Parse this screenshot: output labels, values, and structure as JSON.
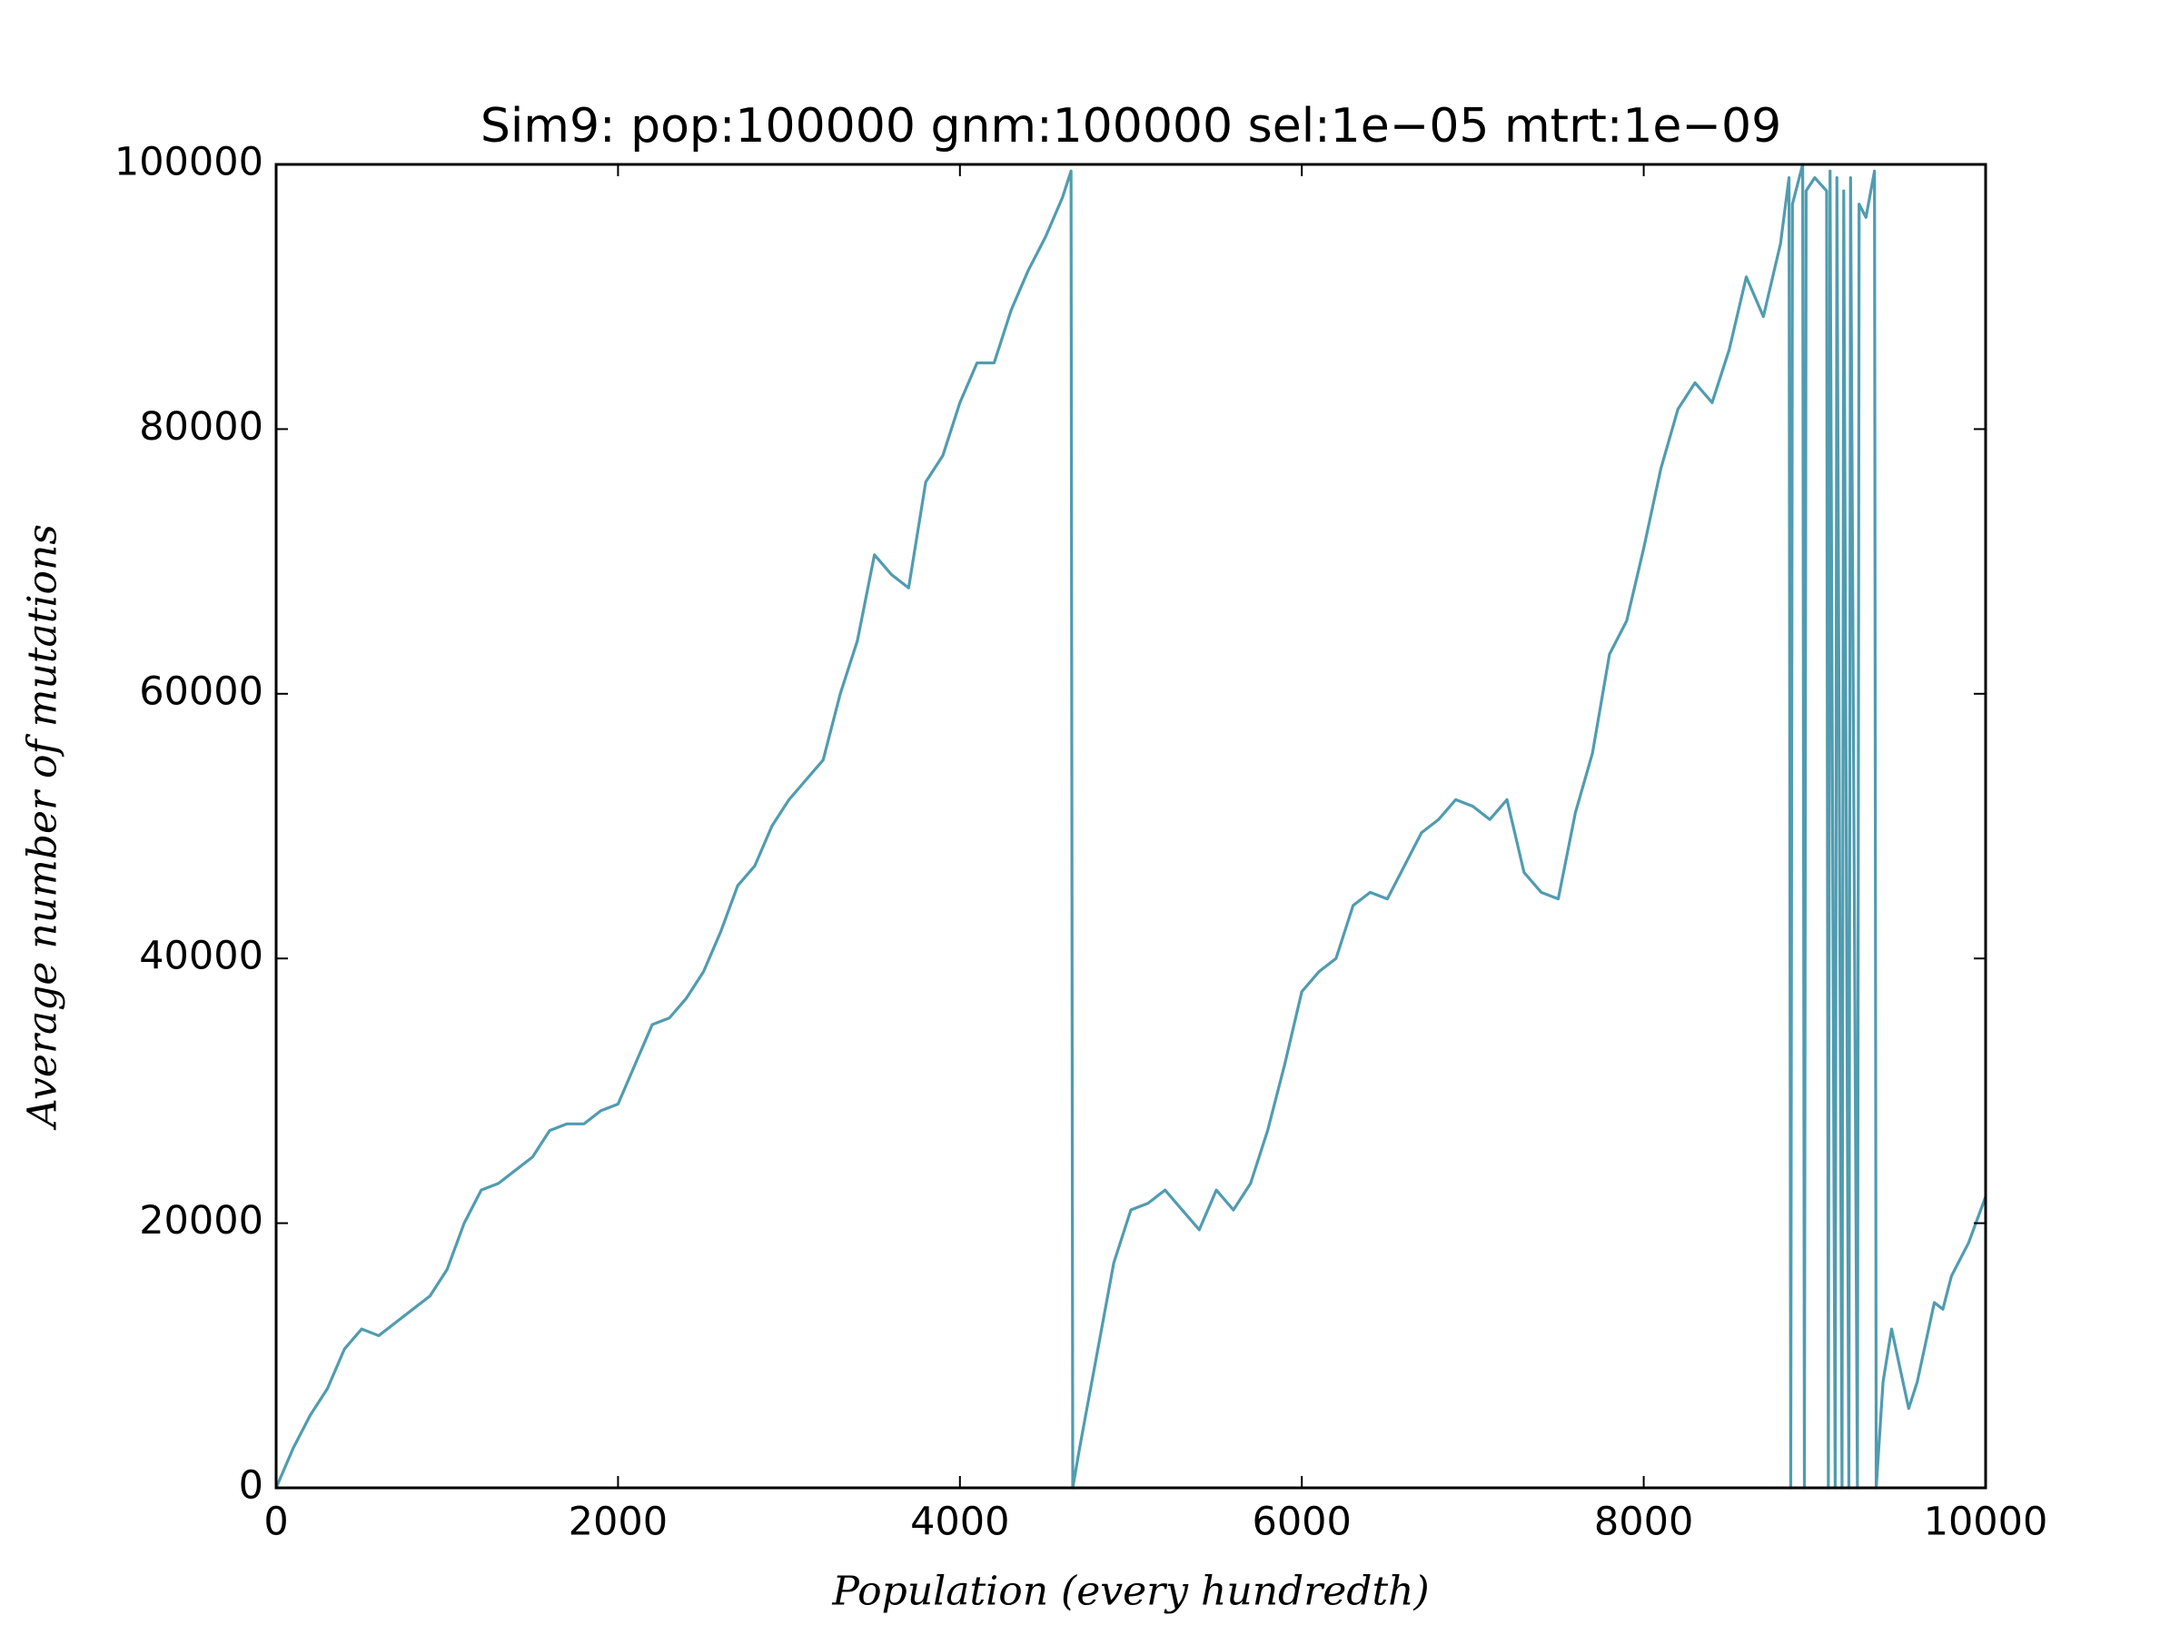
{
  "chart_data": {
    "type": "line",
    "title": "Sim9: pop:100000 gnm:100000 sel:1e−05 mtrt:1e−09",
    "xlabel": "Population (every hundredth)",
    "ylabel": "Average number of mutations",
    "xlim": [
      0,
      10000
    ],
    "xticks": [
      0,
      2000,
      4000,
      6000,
      8000,
      10000
    ],
    "ylim": [
      0,
      100000
    ],
    "yticks": [
      0,
      20000,
      40000,
      60000,
      80000,
      100000
    ],
    "grid": false,
    "series": [
      {
        "color": "#509cb0",
        "x": [
          0,
          100,
          200,
          300,
          400,
          500,
          600,
          700,
          800,
          900,
          1000,
          1100,
          1200,
          1300,
          1400,
          1500,
          1600,
          1700,
          1800,
          1900,
          2000,
          2100,
          2200,
          2300,
          2400,
          2500,
          2600,
          2700,
          2800,
          2900,
          3000,
          3100,
          3200,
          3300,
          3400,
          3500,
          3600,
          3700,
          3800,
          3900,
          4000,
          4100,
          4200,
          4300,
          4400,
          4500,
          4600,
          4650,
          4660,
          4700,
          4800,
          4900,
          5000,
          5100,
          5200,
          5300,
          5400,
          5500,
          5600,
          5700,
          5800,
          5900,
          6000,
          6100,
          6200,
          6300,
          6400,
          6500,
          6600,
          6700,
          6800,
          6900,
          7000,
          7100,
          7200,
          7300,
          7400,
          7500,
          7600,
          7700,
          7800,
          7900,
          8000,
          8100,
          8200,
          8300,
          8400,
          8500,
          8600,
          8700,
          8800,
          8850,
          8860,
          8870,
          8930,
          8940,
          8950,
          9000,
          9070,
          9080,
          9090,
          9120,
          9130,
          9160,
          9170,
          9200,
          9210,
          9250,
          9260,
          9300,
          9350,
          9360,
          9400,
          9450,
          9500,
          9550,
          9600,
          9650,
          9700,
          9750,
          9800,
          9900,
          10000
        ],
        "values": [
          0,
          3000,
          5500,
          7500,
          10500,
          12000,
          11500,
          12500,
          13500,
          14500,
          16500,
          20000,
          22500,
          23000,
          24000,
          25000,
          27000,
          27500,
          27500,
          28500,
          29000,
          32000,
          35000,
          35500,
          37000,
          39000,
          42000,
          45500,
          47000,
          50000,
          52000,
          53500,
          55000,
          60000,
          64000,
          70500,
          69000,
          68000,
          76000,
          78000,
          82000,
          85000,
          85000,
          89000,
          92000,
          94500,
          97500,
          99500,
          0,
          3000,
          10000,
          17000,
          21000,
          21500,
          22500,
          21000,
          19500,
          22500,
          21000,
          23000,
          27000,
          32000,
          37500,
          39000,
          40000,
          44000,
          45000,
          44500,
          47000,
          49500,
          50500,
          52000,
          51500,
          50500,
          52000,
          46500,
          45000,
          44500,
          51000,
          55500,
          63000,
          65500,
          71000,
          77000,
          81500,
          83500,
          82000,
          86000,
          91500,
          88500,
          94000,
          99000,
          0,
          97000,
          100000,
          0,
          98000,
          99000,
          98000,
          0,
          99500,
          0,
          99000,
          0,
          98000,
          0,
          99000,
          0,
          97000,
          96000,
          99500,
          0,
          8000,
          12000,
          9000,
          6000,
          8000,
          11000,
          14000,
          13500,
          16000,
          18500,
          22000
        ]
      }
    ]
  }
}
